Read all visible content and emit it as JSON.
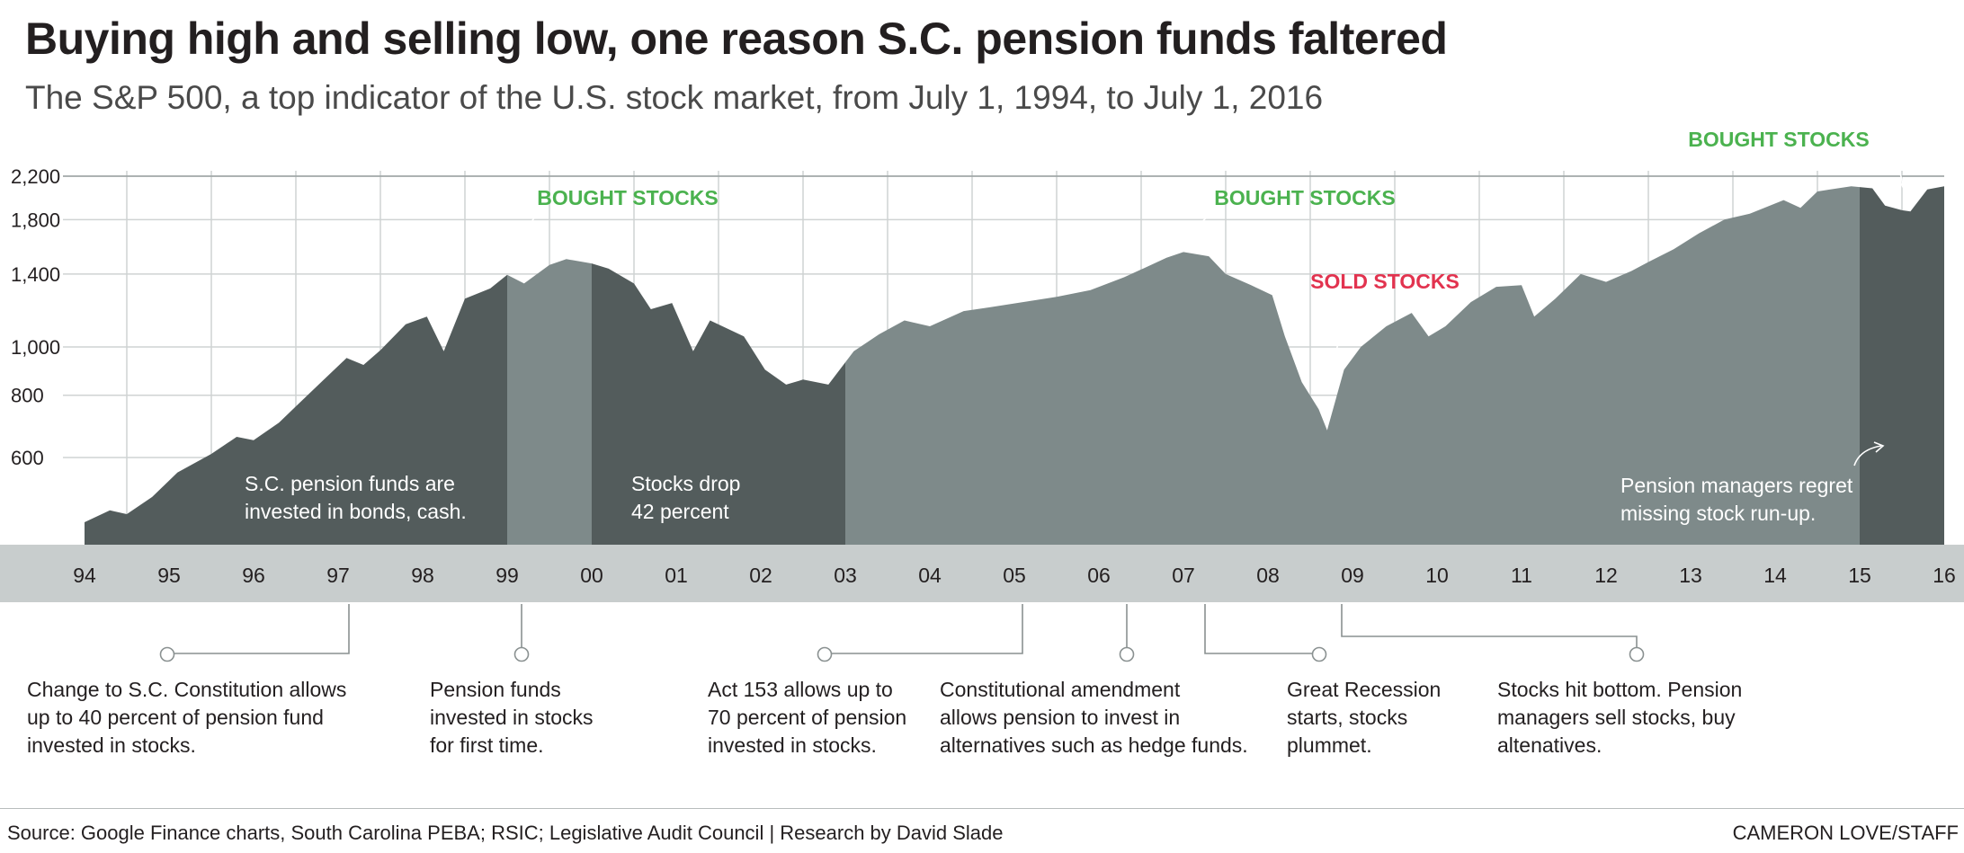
{
  "header": {
    "title": "Buying high and selling low, one reason S.C. pension funds faltered",
    "subtitle": "The S&P 500, a top indicator of the U.S. stock market, from July 1, 1994, to July 1, 2016"
  },
  "colors": {
    "dark_area": "#535c5c",
    "light_area": "#7e8a8a",
    "year_band": "#c8cdcd",
    "green": "#4bb24f",
    "red": "#e2334f"
  },
  "chart_data": {
    "type": "area",
    "title": "The S&P 500, a top indicator of the U.S. stock market, from July 1, 1994, to July 1, 2016",
    "x_range": [
      1994.5,
      2016.5
    ],
    "y_scale": "log",
    "y_ticks": [
      600,
      800,
      1000,
      1400,
      1800,
      2200
    ],
    "y_tick_labels": [
      "600",
      "800",
      "1,000",
      "1,400",
      "1,800",
      "2,200"
    ],
    "year_labels": [
      "94",
      "95",
      "96",
      "97",
      "98",
      "99",
      "00",
      "01",
      "02",
      "03",
      "04",
      "05",
      "06",
      "07",
      "08",
      "09",
      "10",
      "11",
      "12",
      "13",
      "14",
      "15",
      "16"
    ],
    "grid": true,
    "series": [
      {
        "points": [
          [
            1994.5,
            445
          ],
          [
            1994.8,
            470
          ],
          [
            1995.0,
            462
          ],
          [
            1995.3,
            500
          ],
          [
            1995.6,
            560
          ],
          [
            1996.0,
            610
          ],
          [
            1996.3,
            660
          ],
          [
            1996.5,
            650
          ],
          [
            1996.8,
            705
          ],
          [
            1997.0,
            760
          ],
          [
            1997.3,
            850
          ],
          [
            1997.6,
            950
          ],
          [
            1997.8,
            920
          ],
          [
            1998.0,
            985
          ],
          [
            1998.3,
            1110
          ],
          [
            1998.55,
            1150
          ],
          [
            1998.75,
            980
          ],
          [
            1999.0,
            1250
          ],
          [
            1999.3,
            1310
          ],
          [
            1999.5,
            1395
          ],
          [
            1999.7,
            1340
          ],
          [
            2000.0,
            1460
          ],
          [
            2000.2,
            1500
          ],
          [
            2000.5,
            1470
          ],
          [
            2000.7,
            1435
          ],
          [
            2001.0,
            1340
          ],
          [
            2001.2,
            1190
          ],
          [
            2001.45,
            1225
          ],
          [
            2001.7,
            980
          ],
          [
            2001.9,
            1130
          ],
          [
            2002.3,
            1050
          ],
          [
            2002.55,
            900
          ],
          [
            2002.8,
            840
          ],
          [
            2003.0,
            860
          ],
          [
            2003.3,
            840
          ],
          [
            2003.6,
            980
          ],
          [
            2003.9,
            1060
          ],
          [
            2004.2,
            1130
          ],
          [
            2004.5,
            1100
          ],
          [
            2004.9,
            1180
          ],
          [
            2005.2,
            1200
          ],
          [
            2005.6,
            1230
          ],
          [
            2006.0,
            1260
          ],
          [
            2006.4,
            1300
          ],
          [
            2006.8,
            1380
          ],
          [
            2007.0,
            1430
          ],
          [
            2007.3,
            1510
          ],
          [
            2007.5,
            1550
          ],
          [
            2007.8,
            1520
          ],
          [
            2008.0,
            1400
          ],
          [
            2008.3,
            1330
          ],
          [
            2008.55,
            1270
          ],
          [
            2008.7,
            1050
          ],
          [
            2008.9,
            850
          ],
          [
            2009.1,
            750
          ],
          [
            2009.2,
            680
          ],
          [
            2009.4,
            900
          ],
          [
            2009.6,
            1000
          ],
          [
            2009.9,
            1100
          ],
          [
            2010.2,
            1170
          ],
          [
            2010.4,
            1050
          ],
          [
            2010.6,
            1100
          ],
          [
            2010.9,
            1230
          ],
          [
            2011.2,
            1320
          ],
          [
            2011.5,
            1330
          ],
          [
            2011.65,
            1150
          ],
          [
            2011.9,
            1250
          ],
          [
            2012.2,
            1400
          ],
          [
            2012.5,
            1350
          ],
          [
            2012.8,
            1420
          ],
          [
            2013.0,
            1480
          ],
          [
            2013.3,
            1570
          ],
          [
            2013.6,
            1690
          ],
          [
            2013.9,
            1800
          ],
          [
            2014.2,
            1850
          ],
          [
            2014.6,
            1970
          ],
          [
            2014.8,
            1900
          ],
          [
            2015.0,
            2050
          ],
          [
            2015.4,
            2100
          ],
          [
            2015.65,
            2080
          ],
          [
            2015.8,
            1920
          ],
          [
            2016.0,
            1880
          ],
          [
            2016.1,
            1870
          ],
          [
            2016.3,
            2070
          ],
          [
            2016.5,
            2099
          ]
        ]
      }
    ],
    "shaded_periods": [
      {
        "from": 1994.5,
        "to": 1999.5,
        "shade": "dark"
      },
      {
        "from": 1999.5,
        "to": 2000.5,
        "shade": "light"
      },
      {
        "from": 2000.5,
        "to": 2003.5,
        "shade": "dark"
      },
      {
        "from": 2003.5,
        "to": 2015.5,
        "shade": "light"
      },
      {
        "from": 2015.5,
        "to": 2016.5,
        "shade": "dark"
      }
    ],
    "annotations": [
      {
        "text": "BOUGHT STOCKS",
        "color": "green",
        "year": 1999.5
      },
      {
        "text": "BOUGHT STOCKS",
        "color": "green",
        "year": 2007.5
      },
      {
        "text": "SOLD STOCKS",
        "color": "red",
        "year": 2009.0
      },
      {
        "text": "BOUGHT STOCKS",
        "color": "green",
        "year": 2015.95
      }
    ],
    "in_chart_text": [
      {
        "lines": [
          "S.C. pension funds are",
          "invested in bonds, cash."
        ]
      },
      {
        "lines": [
          "Stocks drop",
          "42 percent"
        ]
      },
      {
        "lines": [
          "Pension managers regret",
          "missing stock run-up."
        ]
      }
    ]
  },
  "timeline_notes": [
    {
      "year": 1997.0,
      "text": "Change to S.C. Constitution allows\nup to 40 percent of pension fund\ninvested in stocks."
    },
    {
      "year": 1999.0,
      "text": "Pension funds\ninvested in stocks\nfor first time."
    },
    {
      "year": 2005.0,
      "text": "Act 153 allows up to\n70 percent of pension\ninvested in stocks."
    },
    {
      "year": 2006.25,
      "text": "Constitutional amendment\nallows pension to invest in\nalternatives such as hedge funds."
    },
    {
      "year": 2007.2,
      "text": "Great Recession\nstarts, stocks\nplummet."
    },
    {
      "year": 2008.8,
      "text": "Stocks hit  bottom. Pension\nmanagers sell stocks, buy\naltenatives."
    }
  ],
  "footer": {
    "source": "Source: Google Finance charts, South Carolina PEBA; RSIC; Legislative Audit Council | Research by David Slade",
    "credit": "CAMERON LOVE/STAFF"
  }
}
